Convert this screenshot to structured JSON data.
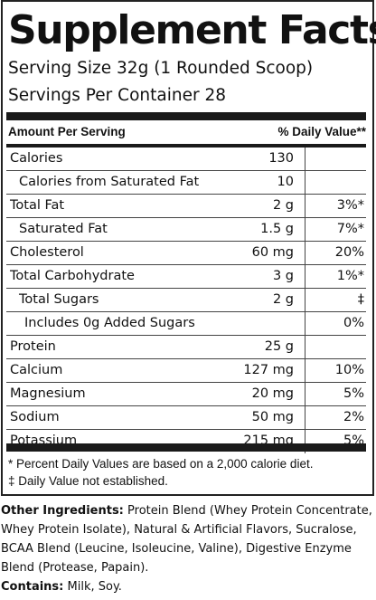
{
  "title": "Supplement Facts",
  "serving_size": "Serving Size 32g (1 Rounded Scoop)",
  "servings_per_container": "Servings Per Container  28",
  "header": {
    "amount_per_serving": "Amount Per Serving",
    "daily_value": "% Daily Value**"
  },
  "nutrients": [
    {
      "name": "Calories",
      "amount": "130",
      "dv": "",
      "indent": 0
    },
    {
      "name": "Calories from Saturated Fat",
      "amount": "10",
      "dv": "",
      "indent": 1
    },
    {
      "name": "Total Fat",
      "amount": "2 g",
      "dv": "3%*",
      "indent": 0
    },
    {
      "name": "Saturated Fat",
      "amount": "1.5 g",
      "dv": "7%*",
      "indent": 1
    },
    {
      "name": "Cholesterol",
      "amount": "60 mg",
      "dv": "20%",
      "indent": 0
    },
    {
      "name": "Total Carbohydrate",
      "amount": "3 g",
      "dv": "1%*",
      "indent": 0
    },
    {
      "name": "Total Sugars",
      "amount": "2 g",
      "dv": "‡",
      "indent": 1
    },
    {
      "name": "Includes 0g Added Sugars",
      "amount": "",
      "dv": "0%",
      "indent": 2
    },
    {
      "name": "Protein",
      "amount": "25 g",
      "dv": "",
      "indent": 0
    },
    {
      "name": "Calcium",
      "amount": "127 mg",
      "dv": "10%",
      "indent": 0
    },
    {
      "name": "Magnesium",
      "amount": "20 mg",
      "dv": "5%",
      "indent": 0
    },
    {
      "name": "Sodium",
      "amount": "50 mg",
      "dv": "2%",
      "indent": 0
    },
    {
      "name": "Potassium",
      "amount": "215 mg",
      "dv": "5%",
      "indent": 0
    }
  ],
  "footnotes": {
    "percent_dv": "* Percent Daily Values are based on a 2,000 calorie diet.",
    "not_established": "‡ Daily Value not established."
  },
  "other_ingredients": {
    "label": "Other Ingredients:",
    "text": " Protein Blend (Whey Protein Concentrate, Whey Protein Isolate), Natural & Artificial Flavors, Sucralose, BCAA Blend (Leucine, Isoleucine, Valine), Digestive Enzyme Blend (Protease, Papain)."
  },
  "contains": {
    "label": "Contains:",
    "text": " Milk, Soy."
  }
}
